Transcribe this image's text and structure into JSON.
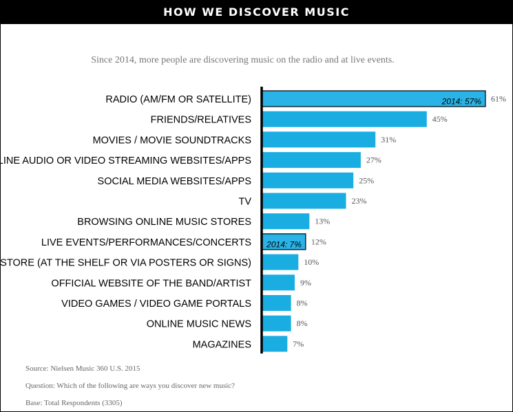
{
  "header": {
    "title": "HOW WE DISCOVER MUSIC"
  },
  "subtitle": "Since 2014, more people are discovering music on the radio and at live events.",
  "colors": {
    "bar": "#19ade2",
    "highlight_bar": "#2ab3e6",
    "axis": "#000000",
    "header_bg": "#000000"
  },
  "chart_data": {
    "type": "bar",
    "orientation": "horizontal",
    "categories": [
      "RADIO (AM/FM OR SATELLITE)",
      "FRIENDS/RELATIVES",
      "MOVIES / MOVIE SOUNDTRACKS",
      "ONLINE AUDIO OR VIDEO STREAMING WEBSITES/APPS",
      "SOCIAL MEDIA WEBSITES/APPS",
      "TV",
      "BROWSING ONLINE MUSIC STORES",
      "LIVE EVENTS/PERFORMANCES/CONCERTS",
      "IN-STORE (AT THE SHELF OR VIA POSTERS OR SIGNS)",
      "OFFICIAL WEBSITE OF THE BAND/ARTIST",
      "VIDEO GAMES / VIDEO GAME PORTALS",
      "ONLINE MUSIC NEWS",
      "MAGAZINES"
    ],
    "values": [
      61,
      45,
      31,
      27,
      25,
      23,
      13,
      12,
      10,
      9,
      8,
      8,
      7
    ],
    "value_labels": [
      "61%",
      "45%",
      "31%",
      "27%",
      "25%",
      "23%",
      "13%",
      "12%",
      "10%",
      "9%",
      "8%",
      "8%",
      "7%"
    ],
    "comparison_2014": [
      {
        "category_index": 0,
        "value": 57,
        "label": "2014: 57%"
      },
      {
        "category_index": 7,
        "value": 7,
        "label": "2014: 7%"
      }
    ],
    "xlim": [
      0,
      61
    ],
    "grid": false,
    "legend": "none"
  },
  "footnotes": {
    "source": "Source: Nielsen Music 360 U.S. 2015",
    "question": "Question: Which of the following are ways you discover new music?",
    "base": "Base: Total Respondents (3305)"
  }
}
